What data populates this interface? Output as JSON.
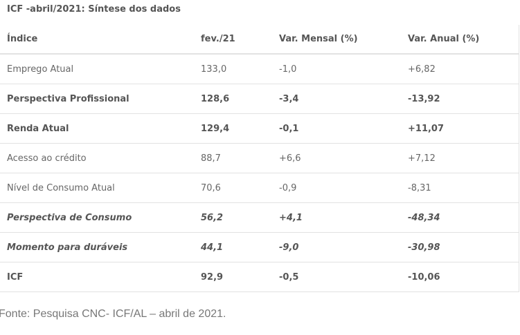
{
  "table": {
    "caption": "ICF -abril/2021: Síntese dos dados",
    "headers": [
      "Índice",
      "fev./21",
      "Var. Mensal (%)",
      "Var. Anual (%)"
    ],
    "rows": [
      {
        "cells": [
          "Emprego Atual",
          "133,0",
          "-1,0",
          "+6,82"
        ],
        "style": "normal"
      },
      {
        "cells": [
          "Perspectiva Profissional",
          "128,6",
          "-3,4",
          "-13,92"
        ],
        "style": "bold"
      },
      {
        "cells": [
          "Renda Atual",
          "129,4",
          "-0,1",
          "+11,07"
        ],
        "style": "bold"
      },
      {
        "cells": [
          "Acesso ao crédito",
          "88,7",
          "+6,6",
          "+7,12"
        ],
        "style": "normal"
      },
      {
        "cells": [
          "Nível de Consumo Atual",
          "70,6",
          "-0,9",
          "-8,31"
        ],
        "style": "normal"
      },
      {
        "cells": [
          "Perspectiva de Consumo",
          "56,2",
          "+4,1",
          "-48,34"
        ],
        "style": "bolditalic"
      },
      {
        "cells": [
          "Momento para duráveis",
          "44,1",
          "-9,0",
          "-30,98"
        ],
        "style": "bolditalic"
      },
      {
        "cells": [
          "ICF",
          "92,9",
          "-0,5",
          "-10,06"
        ],
        "style": "bold"
      }
    ]
  },
  "source": "Fonte: Pesquisa CNC- ICF/AL – abril de 2021."
}
